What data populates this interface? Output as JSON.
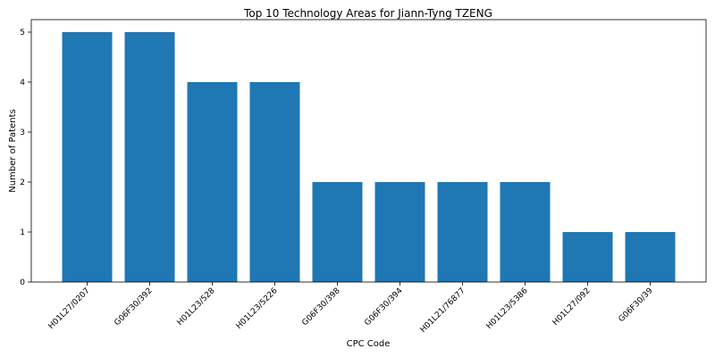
{
  "chart_data": {
    "type": "bar",
    "title": "Top 10 Technology Areas for Jiann-Tyng TZENG",
    "xlabel": "CPC Code",
    "ylabel": "Number of Patents",
    "categories": [
      "H01L27/0207",
      "G06F30/392",
      "H01L23/528",
      "H01L23/5226",
      "G06F30/398",
      "G06F30/394",
      "H01L21/76877",
      "H01L23/5386",
      "H01L27/092",
      "G06F30/39"
    ],
    "values": [
      5,
      5,
      4,
      4,
      2,
      2,
      2,
      2,
      1,
      1
    ],
    "ylim": [
      0,
      5.25
    ],
    "yticks": [
      0,
      1,
      2,
      3,
      4,
      5
    ],
    "bar_color": "#1f77b4",
    "grid": false,
    "legend": "none"
  }
}
